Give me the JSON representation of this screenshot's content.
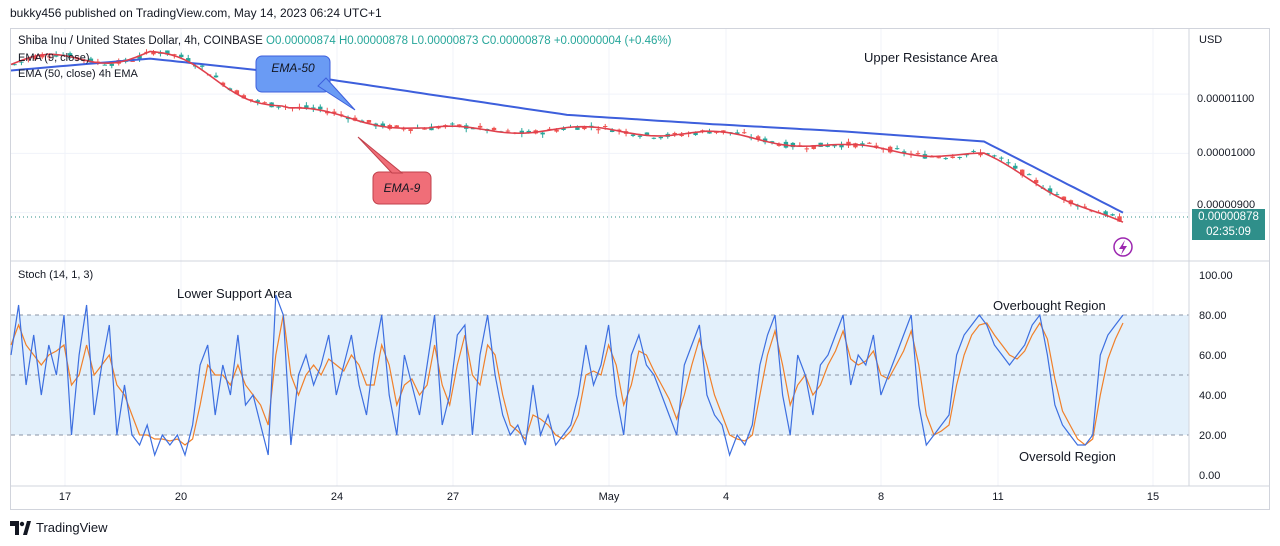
{
  "publisher_line": "bukky456 published on TradingView.com, May 14, 2023 06:24 UTC+1",
  "header": {
    "symbol": "Shiba Inu / United States Dollar, 4h, COINBASE",
    "open": "O0.00000874",
    "high": "H0.00000878",
    "low": "L0.00000873",
    "close": "C0.00000878",
    "change": "+0.00000004 (+0.46%)"
  },
  "indicators": {
    "ema9_label": "EMA (9, close)",
    "ema50_label": "EMA (50, close) 4h EMA",
    "stoch_label": "Stoch (14, 1, 3)"
  },
  "price_axis": {
    "currency": "USD",
    "ticks": [
      "0.00001100",
      "0.00001000",
      "0.00000900"
    ]
  },
  "last_price": {
    "price": "0.00000878",
    "countdown": "02:35:09"
  },
  "stoch_axis": {
    "ticks": [
      "100.00",
      "80.00",
      "60.00",
      "40.00",
      "20.00",
      "0.00"
    ]
  },
  "x_axis": {
    "labels": [
      "17",
      "20",
      "24",
      "27",
      "May",
      "4",
      "8",
      "11",
      "15"
    ]
  },
  "annotations": {
    "upper_resistance": "Upper Resistance Area",
    "lower_support": "Lower Support Area",
    "overbought": "Overbought Region",
    "oversold": "Oversold Region",
    "ema50_callout": "EMA-50",
    "ema9_callout": "EMA-9"
  },
  "footer": {
    "brand": "TradingView"
  },
  "colors": {
    "ema9": "#e0404d",
    "ema50": "#3d5fdc",
    "up": "#26a69a",
    "down": "#ef5350",
    "stoch_k": "#3d6fe0",
    "stoch_d": "#f0802a",
    "band": "#e3f0fb",
    "callout_blue": "#6a9bf4",
    "callout_red": "#f06e78"
  },
  "chart_data": [
    {
      "type": "line",
      "title": "Shiba Inu / United States Dollar, 4h, COINBASE",
      "ylabel": "USD",
      "ylim": [
        8.2e-06,
        1.21e-05
      ],
      "x_index_range": [
        0,
        160
      ],
      "series": [
        {
          "name": "EMA (50, close)",
          "x": [
            0,
            20,
            40,
            60,
            80,
            100,
            120,
            140,
            160
          ],
          "values": [
            1.14e-05,
            1.16e-05,
            1.135e-05,
            1.1e-05,
            1.065e-05,
            1.05e-05,
            1.037e-05,
            1.02e-05,
            9e-06
          ]
        },
        {
          "name": "EMA (9, close)",
          "x": [
            0,
            20,
            40,
            60,
            80,
            100,
            120,
            140,
            160
          ],
          "values": [
            1.15e-05,
            1.17e-05,
            1.075e-05,
            1.04e-05,
            1.04e-05,
            1.033e-05,
            1.01e-05,
            9.95e-06,
            8.78e-06
          ]
        }
      ]
    },
    {
      "type": "line",
      "title": "Stoch (14, 1, 3)",
      "ylim": [
        0,
        100
      ],
      "overbought": 80,
      "middle": 50,
      "oversold": 20,
      "series": [
        {
          "name": "%K",
          "values": [
            60,
            85,
            45,
            70,
            40,
            65,
            50,
            80,
            20,
            60,
            85,
            30,
            55,
            75,
            20,
            45,
            20,
            15,
            25,
            10,
            20,
            15,
            20,
            10,
            25,
            55,
            65,
            30,
            55,
            40,
            70,
            35,
            40,
            25,
            10,
            90,
            80,
            15,
            50,
            60,
            45,
            55,
            70,
            40,
            55,
            70,
            45,
            30,
            60,
            80,
            40,
            20,
            60,
            45,
            30,
            55,
            80,
            25,
            40,
            70,
            75,
            20,
            60,
            80,
            50,
            30,
            20,
            25,
            15,
            45,
            20,
            30,
            15,
            20,
            25,
            40,
            65,
            45,
            55,
            75,
            40,
            20,
            60,
            70,
            55,
            50,
            40,
            30,
            20,
            55,
            65,
            75,
            40,
            30,
            25,
            10,
            20,
            15,
            25,
            55,
            70,
            80,
            40,
            20,
            60,
            50,
            30,
            55,
            60,
            70,
            80,
            45,
            60,
            55,
            70,
            40,
            50,
            60,
            70,
            80,
            35,
            15,
            20,
            25,
            30,
            60,
            70,
            75,
            80,
            75,
            65,
            60,
            55,
            60,
            65,
            75,
            80,
            60,
            35,
            25,
            20,
            15,
            15,
            20,
            60,
            70,
            75,
            80
          ]
        },
        {
          "name": "%D",
          "values": [
            65,
            75,
            65,
            60,
            55,
            60,
            62,
            65,
            45,
            50,
            65,
            50,
            55,
            60,
            45,
            40,
            30,
            20,
            20,
            18,
            18,
            17,
            18,
            15,
            18,
            35,
            55,
            50,
            50,
            45,
            55,
            45,
            40,
            35,
            25,
            60,
            80,
            50,
            40,
            50,
            55,
            50,
            58,
            55,
            52,
            60,
            55,
            45,
            45,
            65,
            55,
            35,
            45,
            48,
            40,
            45,
            65,
            45,
            35,
            55,
            70,
            50,
            45,
            65,
            60,
            40,
            25,
            22,
            18,
            30,
            28,
            25,
            20,
            18,
            22,
            30,
            50,
            52,
            50,
            65,
            55,
            35,
            45,
            62,
            60,
            52,
            45,
            38,
            28,
            40,
            55,
            68,
            55,
            40,
            30,
            20,
            18,
            17,
            20,
            40,
            60,
            72,
            55,
            35,
            45,
            50,
            40,
            45,
            55,
            62,
            72,
            58,
            55,
            57,
            62,
            50,
            48,
            55,
            62,
            72,
            55,
            30,
            20,
            22,
            25,
            45,
            60,
            70,
            75,
            76,
            70,
            65,
            60,
            58,
            62,
            70,
            76,
            68,
            48,
            32,
            25,
            18,
            15,
            18,
            40,
            58,
            68,
            76
          ]
        }
      ]
    }
  ]
}
